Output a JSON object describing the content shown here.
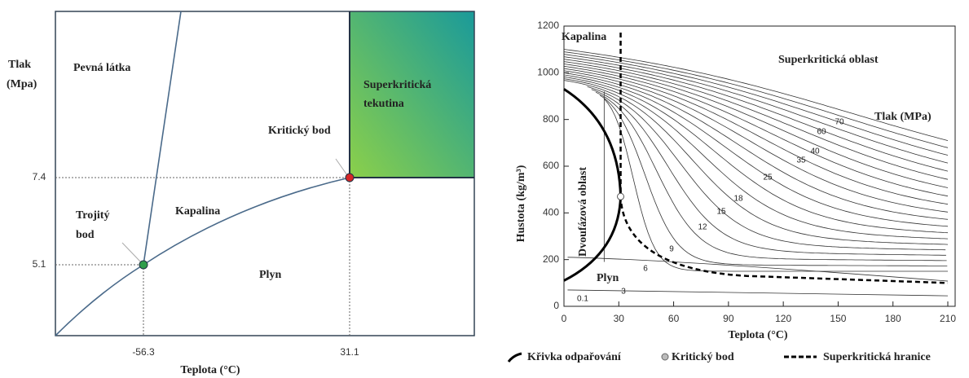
{
  "left": {
    "y_label": [
      "Tlak",
      "(Mpa)"
    ],
    "x_label": "Teplota (°C)",
    "xticks": [
      -56.3,
      31.1
    ],
    "yticks": [
      5.1,
      7.4
    ],
    "solid": "Pevná látka",
    "supercritical": [
      "Superkritická",
      "tekutina"
    ],
    "liquid": "Kapalina",
    "gas": "Plyn",
    "triple_point": {
      "label": [
        "Trojitý",
        "bod"
      ],
      "x": -56.3,
      "y": 5.1
    },
    "critical_point": {
      "label": "Kritický bod",
      "x": 31.1,
      "y": 7.4
    }
  },
  "right": {
    "type": "line",
    "x_label": "Teplota (°C)",
    "y_label": "Hustota (kg/m³)",
    "xlim": [
      0,
      210
    ],
    "ylim": [
      0,
      1200
    ],
    "xticks": [
      0,
      30,
      60,
      90,
      120,
      150,
      180,
      210
    ],
    "yticks": [
      0,
      200,
      400,
      600,
      800,
      1000,
      1200
    ],
    "liquid": "Kapalina",
    "supercritical": "Superkritická oblast",
    "two_phase": "Dvoufázová oblast",
    "gas": "Plyn",
    "pressure_title": "Tlak (MPa)",
    "isobar_labels": [
      "70",
      "60",
      "40",
      "35",
      "25",
      "18",
      "15",
      "12",
      "9",
      "6",
      "3",
      "0.1"
    ],
    "critical_point": {
      "x": 31,
      "y": 470
    },
    "legend": [
      "Křivka odpařování",
      "Kritický bod",
      "Superkritická hranice"
    ]
  }
}
